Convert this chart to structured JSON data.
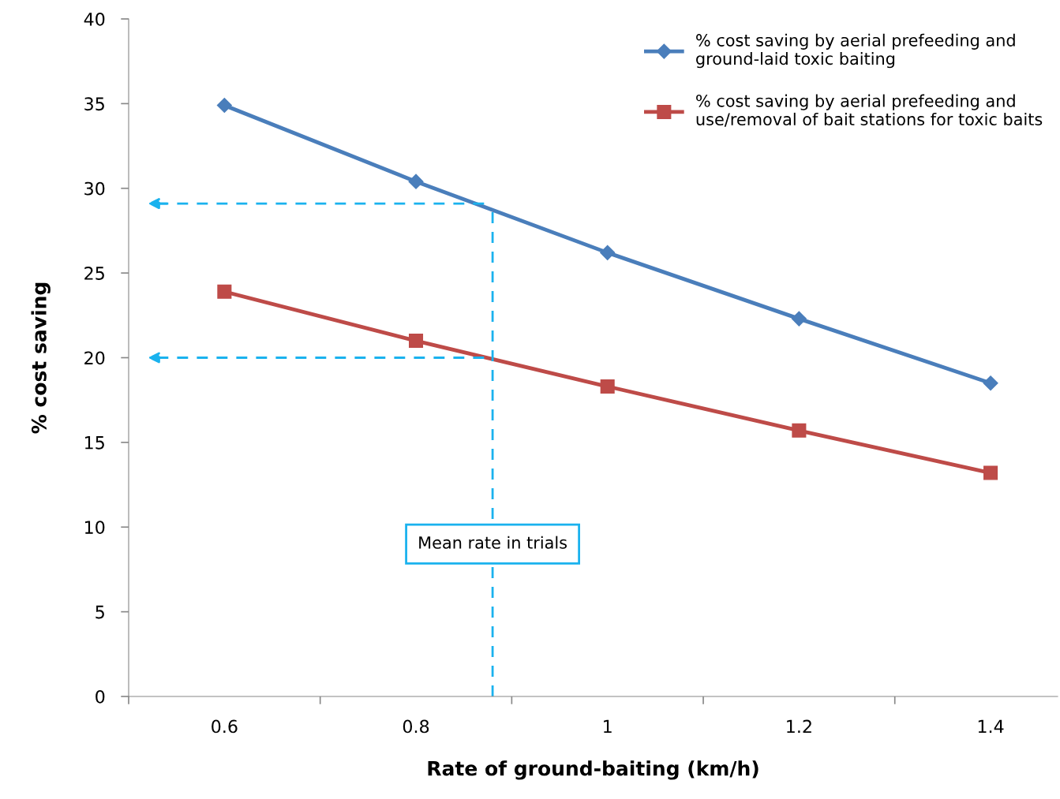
{
  "chart_data": {
    "type": "line",
    "xlabel": "Rate of ground-baiting (km/h)",
    "ylabel": "% cost saving",
    "x": [
      0.6,
      0.8,
      1.0,
      1.2,
      1.4
    ],
    "xlim": [
      0.5,
      1.47
    ],
    "xticks": [
      {
        "value": 0.5,
        "label": null
      },
      {
        "value": 0.6,
        "label": "0.6"
      },
      {
        "value": 0.7,
        "label": null
      },
      {
        "value": 0.8,
        "label": "0.8"
      },
      {
        "value": 0.9,
        "label": null
      },
      {
        "value": 1.0,
        "label": "1"
      },
      {
        "value": 1.1,
        "label": null
      },
      {
        "value": 1.2,
        "label": "1.2"
      },
      {
        "value": 1.3,
        "label": null
      },
      {
        "value": 1.4,
        "label": "1.4"
      }
    ],
    "ylim": [
      0,
      40
    ],
    "yticks": [
      0,
      5,
      10,
      15,
      20,
      25,
      30,
      35,
      40
    ],
    "series": [
      {
        "name": "% cost saving by aerial prefeeding and\nground-laid toxic baiting",
        "color": "#4a7ebb",
        "marker": "diamond",
        "values": [
          34.9,
          30.4,
          26.2,
          22.3,
          18.5
        ]
      },
      {
        "name": "% cost saving by aerial prefeeding and\nuse/removal of bait stations for toxic baits",
        "color": "#be4b48",
        "marker": "square",
        "values": [
          23.9,
          21.0,
          18.3,
          15.7,
          13.2
        ]
      }
    ],
    "ref_lines": [
      {
        "axis": "x",
        "value": 0.88,
        "label": "Mean rate in trials",
        "color": "#1ab2ee",
        "line_style": "dashed"
      },
      {
        "axis": "y",
        "value": 29.1,
        "color": "#1ab2ee",
        "line_style": "dashed"
      },
      {
        "axis": "y",
        "value": 20.0,
        "color": "#1ab2ee",
        "line_style": "dashed"
      }
    ],
    "grid": false,
    "legend": "top right",
    "line_style": "solid"
  }
}
